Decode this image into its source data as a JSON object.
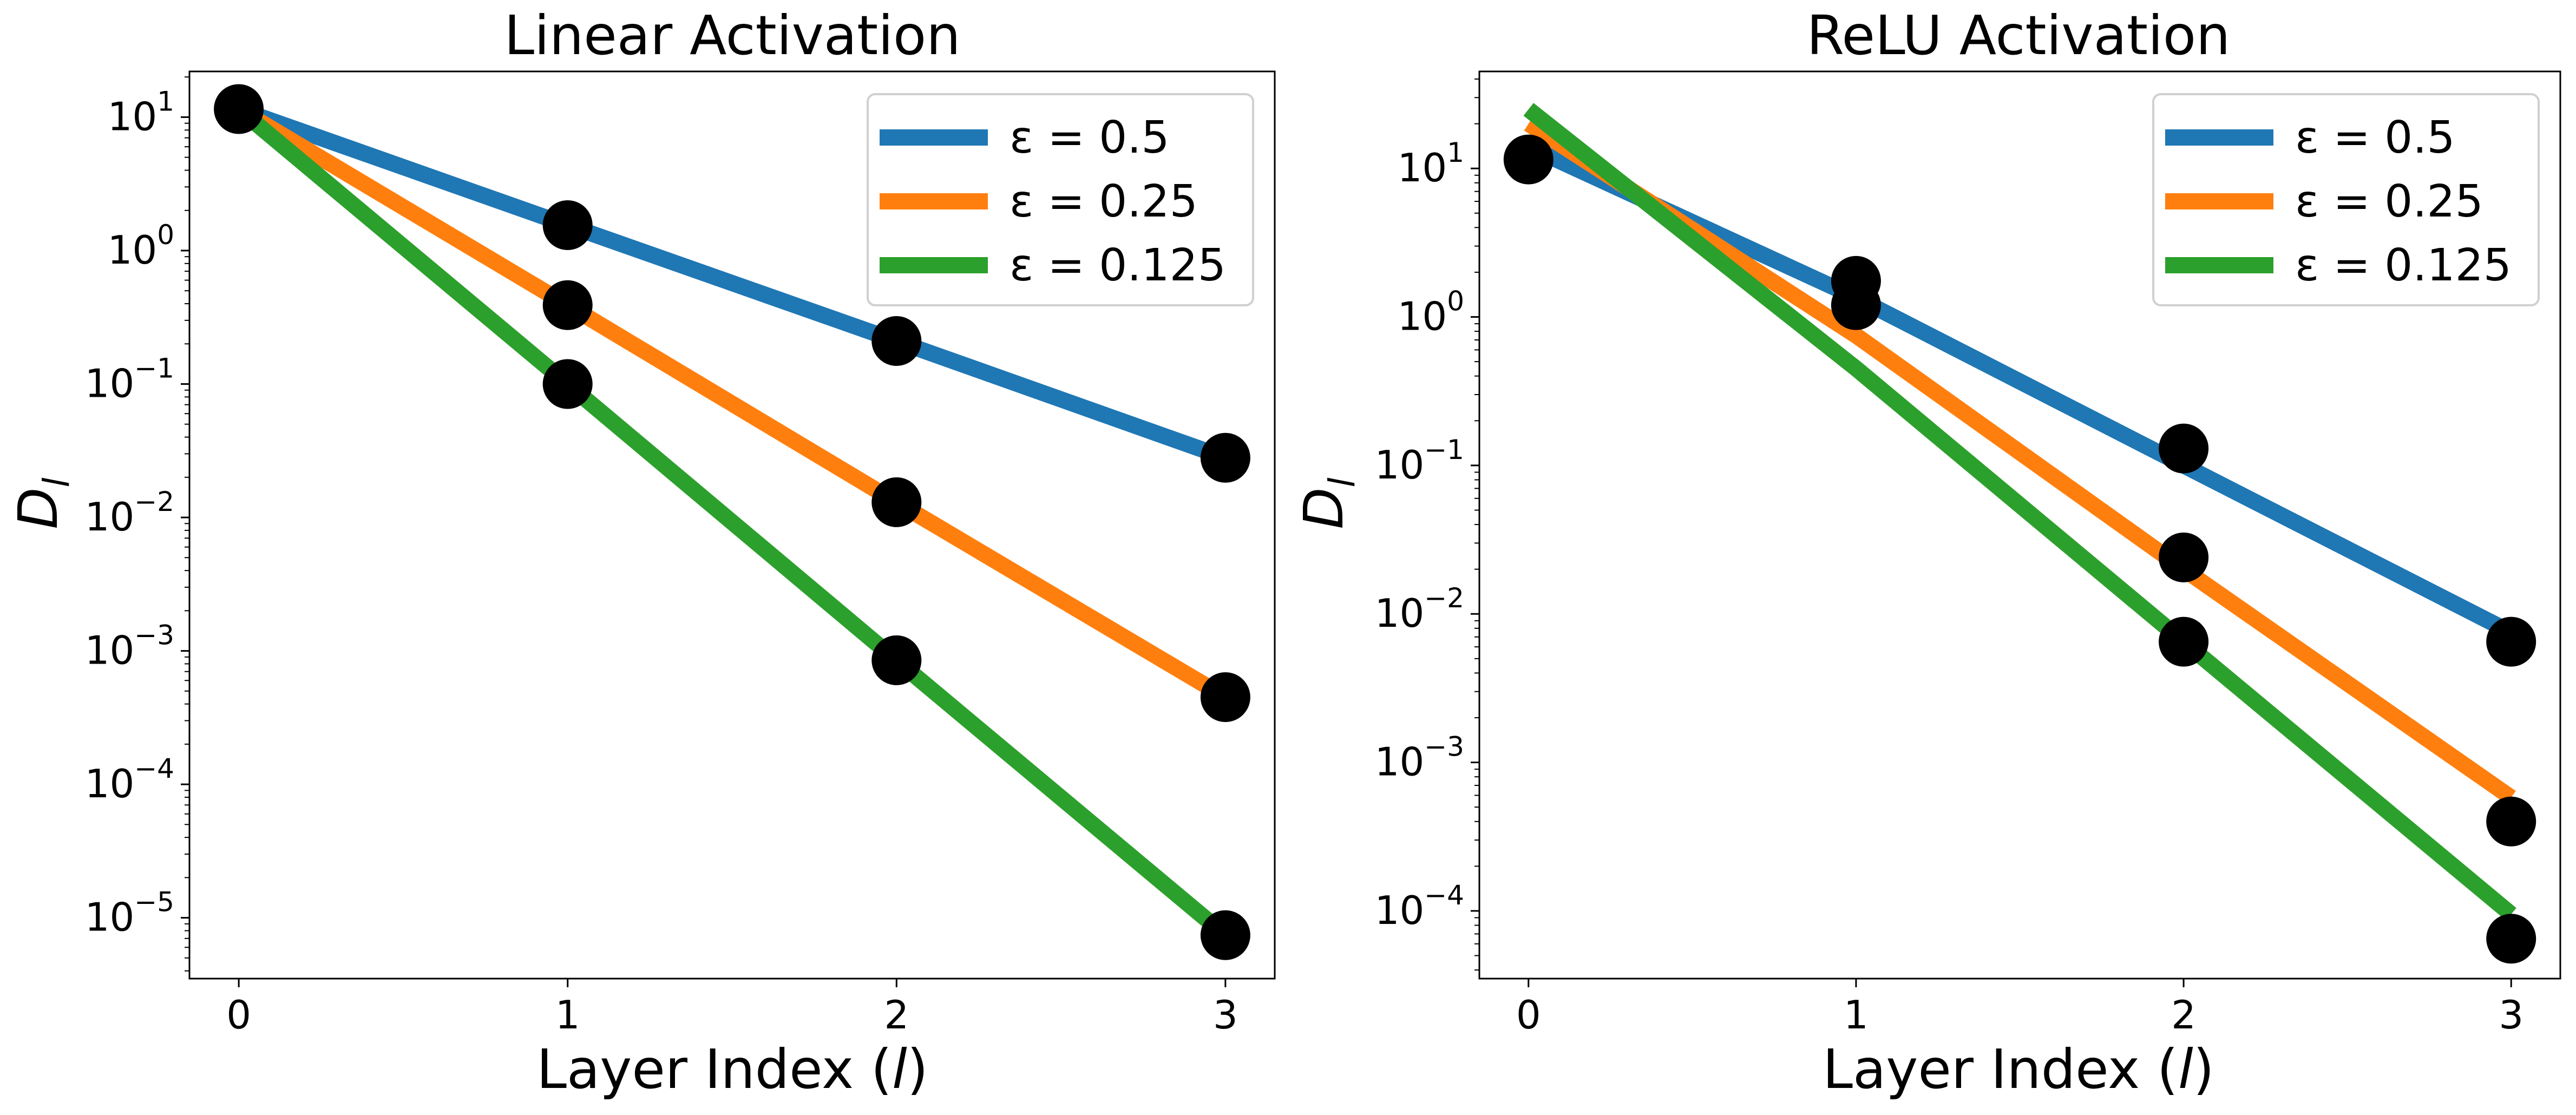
{
  "chart_data": [
    {
      "type": "line",
      "title": "Linear Activation",
      "xlabel": "Layer Index (l)",
      "ylabel": "D_l",
      "x": [
        0,
        1,
        2,
        3
      ],
      "xticks": [
        "0",
        "1",
        "2",
        "3"
      ],
      "yscale": "log",
      "ylim": [
        3.5e-06,
        22
      ],
      "yticks": [
        {
          "value": 1e-05,
          "base": "10",
          "exp": "−5"
        },
        {
          "value": 0.0001,
          "base": "10",
          "exp": "−4"
        },
        {
          "value": 0.001,
          "base": "10",
          "exp": "−3"
        },
        {
          "value": 0.01,
          "base": "10",
          "exp": "−2"
        },
        {
          "value": 0.1,
          "base": "10",
          "exp": "−1"
        },
        {
          "value": 1,
          "base": "10",
          "exp": "0"
        },
        {
          "value": 10,
          "base": "10",
          "exp": "1"
        }
      ],
      "legend_position": "upper right",
      "grid": false,
      "series": [
        {
          "name": "ε = 0.5",
          "color": "#1f77b4",
          "fit": [
            11.5,
            1.55,
            0.21,
            0.028
          ]
        },
        {
          "name": "ε = 0.25",
          "color": "#ff7f0e",
          "fit": [
            11.5,
            0.39,
            0.013,
            0.00045
          ]
        },
        {
          "name": "ε = 0.125",
          "color": "#2ca02c",
          "fit": [
            11.5,
            0.1,
            0.00085,
            7.4e-06
          ]
        }
      ],
      "points": [
        [
          0,
          11.5
        ],
        [
          1,
          1.55
        ],
        [
          1,
          0.39
        ],
        [
          1,
          0.1
        ],
        [
          2,
          0.21
        ],
        [
          2,
          0.013
        ],
        [
          2,
          0.00085
        ],
        [
          3,
          0.028
        ],
        [
          3,
          0.00045
        ],
        [
          3,
          7.4e-06
        ]
      ]
    },
    {
      "type": "line",
      "title": "ReLU Activation",
      "xlabel": "Layer Index (l)",
      "ylabel": "D_l",
      "x": [
        0,
        1,
        2,
        3
      ],
      "xticks": [
        "0",
        "1",
        "2",
        "3"
      ],
      "yscale": "log",
      "ylim": [
        3.5e-05,
        45
      ],
      "yticks": [
        {
          "value": 0.0001,
          "base": "10",
          "exp": "−4"
        },
        {
          "value": 0.001,
          "base": "10",
          "exp": "−3"
        },
        {
          "value": 0.01,
          "base": "10",
          "exp": "−2"
        },
        {
          "value": 0.1,
          "base": "10",
          "exp": "−1"
        },
        {
          "value": 1,
          "base": "10",
          "exp": "0"
        },
        {
          "value": 10,
          "base": "10",
          "exp": "1"
        }
      ],
      "legend_position": "upper right",
      "grid": false,
      "series": [
        {
          "name": "ε = 0.5",
          "color": "#1f77b4",
          "fit": [
            14,
            1.35,
            0.1,
            0.0075
          ]
        },
        {
          "name": "ε = 0.25",
          "color": "#ff7f0e",
          "fit": [
            20,
            0.75,
            0.02,
            0.00058
          ]
        },
        {
          "name": "ε = 0.125",
          "color": "#2ca02c",
          "fit": [
            25,
            0.45,
            0.0065,
            9.5e-05
          ]
        }
      ],
      "points": [
        [
          0,
          11.5
        ],
        [
          1,
          1.75
        ],
        [
          1,
          1.2
        ],
        [
          2,
          0.13
        ],
        [
          2,
          0.024
        ],
        [
          2,
          0.0065
        ],
        [
          3,
          0.0065
        ],
        [
          3,
          0.0004
        ],
        [
          3,
          6.5e-05
        ]
      ]
    }
  ]
}
